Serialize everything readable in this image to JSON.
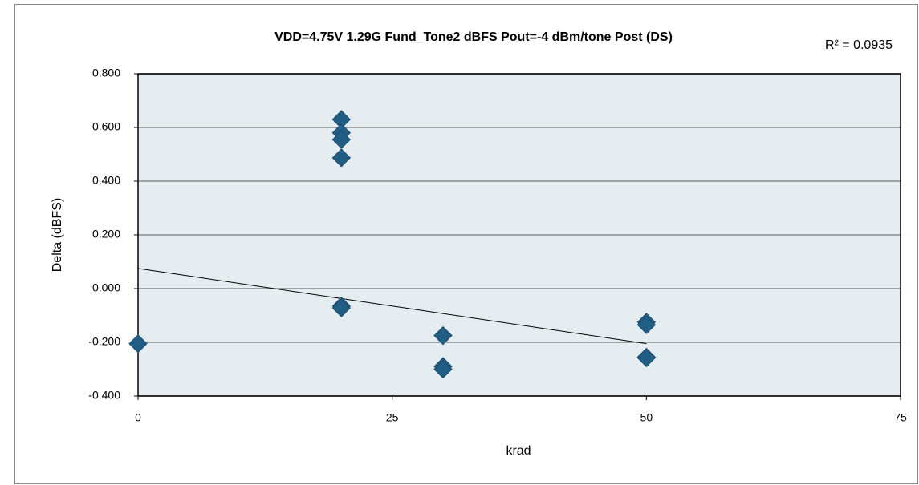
{
  "chart_data": {
    "type": "scatter",
    "title": "VDD=4.75V 1.29G Fund_Tone2 dBFS Pout=-4 dBm/tone Post (DS)",
    "xlabel": "krad",
    "ylabel": "Delta (dBFS)",
    "annotation": "R² = 0.0935",
    "x": [
      0,
      20,
      20,
      20,
      20,
      20,
      20,
      30,
      30,
      30,
      50,
      50,
      50,
      50
    ],
    "values": [
      -0.205,
      0.63,
      0.58,
      0.555,
      0.487,
      -0.065,
      -0.072,
      -0.175,
      -0.29,
      -0.3,
      -0.125,
      -0.135,
      -0.255,
      -0.258
    ],
    "color": "#215e86",
    "trendline": {
      "x": [
        0,
        50
      ],
      "y": [
        0.075,
        -0.205
      ],
      "color": "#000000"
    },
    "xlim": [
      0,
      75
    ],
    "xticks": [
      0,
      25,
      50,
      75
    ],
    "ylim": [
      -0.4,
      0.8
    ],
    "yticks": [
      {
        "value": -0.4,
        "label": "-0.400"
      },
      {
        "value": -0.2,
        "label": "-0.200"
      },
      {
        "value": 0,
        "label": "0.000"
      },
      {
        "value": 0.2,
        "label": "0.200"
      },
      {
        "value": 0.4,
        "label": "0.400"
      },
      {
        "value": 0.6,
        "label": "0.600"
      },
      {
        "value": 0.8,
        "label": "0.800"
      }
    ],
    "grid": true
  }
}
